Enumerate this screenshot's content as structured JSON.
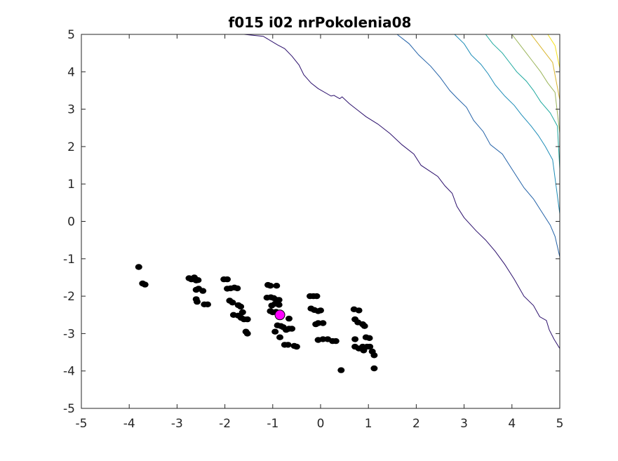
{
  "chart_data": {
    "type": "scatter",
    "title": "f015 i02 nrPokolenia08",
    "xlabel": "",
    "ylabel": "",
    "xlim": [
      -5,
      5
    ],
    "ylim": [
      -5,
      5
    ],
    "x_ticks": [
      "-5",
      "-4",
      "-3",
      "-2",
      "-1",
      "0",
      "1",
      "2",
      "3",
      "4",
      "5"
    ],
    "y_ticks": [
      "5",
      "4",
      "3",
      "2",
      "1",
      "0",
      "-1",
      "-2",
      "-3",
      "-4",
      "-5"
    ],
    "grid": false,
    "legend": "none",
    "point_color": "#000000",
    "best_color": "#ff00ff",
    "points": [
      [
        -3.8,
        -1.22
      ],
      [
        -3.72,
        -1.66
      ],
      [
        -3.67,
        -1.69
      ],
      [
        -2.75,
        -1.52
      ],
      [
        -2.7,
        -1.55
      ],
      [
        -2.64,
        -1.5
      ],
      [
        -2.6,
        -1.58
      ],
      [
        -2.56,
        -1.57
      ],
      [
        -2.6,
        -1.83
      ],
      [
        -2.55,
        -1.8
      ],
      [
        -2.46,
        -1.86
      ],
      [
        -2.6,
        -2.08
      ],
      [
        -2.58,
        -2.15
      ],
      [
        -2.43,
        -2.22
      ],
      [
        -2.36,
        -2.22
      ],
      [
        -2.02,
        -1.55
      ],
      [
        -1.95,
        -1.55
      ],
      [
        -1.95,
        -1.8
      ],
      [
        -1.88,
        -1.79
      ],
      [
        -1.8,
        -1.77
      ],
      [
        -1.74,
        -1.79
      ],
      [
        -1.9,
        -2.12
      ],
      [
        -1.84,
        -2.17
      ],
      [
        -1.72,
        -2.24
      ],
      [
        -1.67,
        -2.28
      ],
      [
        -1.63,
        -2.43
      ],
      [
        -1.82,
        -2.5
      ],
      [
        -1.72,
        -2.52
      ],
      [
        -1.66,
        -2.58
      ],
      [
        -1.6,
        -2.62
      ],
      [
        -1.53,
        -2.62
      ],
      [
        -1.56,
        -2.95
      ],
      [
        -1.53,
        -3.0
      ],
      [
        -1.1,
        -1.7
      ],
      [
        -1.05,
        -1.72
      ],
      [
        -0.92,
        -1.72
      ],
      [
        -1.12,
        -2.04
      ],
      [
        -1.04,
        -2.03
      ],
      [
        -0.98,
        -2.05
      ],
      [
        -0.92,
        -2.1
      ],
      [
        -0.87,
        -2.1
      ],
      [
        -1.02,
        -2.25
      ],
      [
        -0.95,
        -2.2
      ],
      [
        -0.87,
        -2.23
      ],
      [
        -1.05,
        -2.4
      ],
      [
        -1.0,
        -2.43
      ],
      [
        -0.93,
        -2.42
      ],
      [
        -0.9,
        -2.78
      ],
      [
        -0.83,
        -2.8
      ],
      [
        -0.78,
        -2.83
      ],
      [
        -0.72,
        -2.9
      ],
      [
        -0.66,
        -2.87
      ],
      [
        -0.6,
        -2.87
      ],
      [
        -0.66,
        -2.6
      ],
      [
        -0.85,
        -3.1
      ],
      [
        -0.75,
        -3.3
      ],
      [
        -0.68,
        -3.3
      ],
      [
        -0.55,
        -3.33
      ],
      [
        -0.5,
        -3.35
      ],
      [
        -0.95,
        -2.95
      ],
      [
        -0.22,
        -2.0
      ],
      [
        -0.15,
        -2.0
      ],
      [
        -0.08,
        -2.0
      ],
      [
        -0.2,
        -2.33
      ],
      [
        -0.13,
        -2.37
      ],
      [
        -0.05,
        -2.4
      ],
      [
        0.0,
        -2.38
      ],
      [
        -0.1,
        -2.75
      ],
      [
        -0.05,
        -2.72
      ],
      [
        0.05,
        -2.72
      ],
      [
        -0.05,
        -3.17
      ],
      [
        0.05,
        -3.15
      ],
      [
        0.15,
        -3.15
      ],
      [
        0.25,
        -3.2
      ],
      [
        0.32,
        -3.2
      ],
      [
        0.43,
        -3.98
      ],
      [
        0.7,
        -2.35
      ],
      [
        0.8,
        -2.38
      ],
      [
        0.72,
        -2.62
      ],
      [
        0.78,
        -2.7
      ],
      [
        0.88,
        -2.75
      ],
      [
        0.92,
        -2.8
      ],
      [
        0.72,
        -3.15
      ],
      [
        0.72,
        -3.35
      ],
      [
        0.8,
        -3.4
      ],
      [
        0.88,
        -3.35
      ],
      [
        0.9,
        -3.45
      ],
      [
        0.95,
        -3.1
      ],
      [
        1.02,
        -3.12
      ],
      [
        0.97,
        -3.35
      ],
      [
        1.03,
        -3.35
      ],
      [
        1.08,
        -3.48
      ],
      [
        1.12,
        -3.58
      ],
      [
        1.12,
        -3.93
      ]
    ],
    "best_point": [
      -0.85,
      -2.5
    ],
    "contour_lines": [
      {
        "color": "#2a0e6b",
        "points": [
          [
            -1.6,
            5.0
          ],
          [
            -1.2,
            4.95
          ],
          [
            -0.9,
            4.72
          ],
          [
            -0.75,
            4.62
          ],
          [
            -0.6,
            4.42
          ],
          [
            -0.45,
            4.18
          ],
          [
            -0.35,
            3.92
          ],
          [
            -0.2,
            3.7
          ],
          [
            -0.05,
            3.55
          ],
          [
            0.22,
            3.35
          ],
          [
            0.28,
            3.37
          ],
          [
            0.4,
            3.28
          ],
          [
            0.45,
            3.33
          ],
          [
            0.6,
            3.15
          ],
          [
            0.75,
            3.0
          ],
          [
            0.95,
            2.8
          ],
          [
            1.2,
            2.6
          ],
          [
            1.45,
            2.35
          ],
          [
            1.7,
            2.05
          ],
          [
            1.95,
            1.8
          ],
          [
            2.1,
            1.5
          ],
          [
            2.45,
            1.2
          ],
          [
            2.6,
            0.95
          ],
          [
            2.75,
            0.75
          ],
          [
            2.85,
            0.4
          ],
          [
            3.0,
            0.1
          ],
          [
            3.25,
            -0.25
          ],
          [
            3.45,
            -0.5
          ],
          [
            3.65,
            -0.8
          ],
          [
            3.85,
            -1.15
          ],
          [
            4.05,
            -1.55
          ],
          [
            4.25,
            -2.0
          ],
          [
            4.45,
            -2.25
          ],
          [
            4.58,
            -2.55
          ],
          [
            4.72,
            -2.65
          ],
          [
            4.78,
            -2.9
          ],
          [
            4.88,
            -3.15
          ],
          [
            5.0,
            -3.4
          ]
        ]
      },
      {
        "color": "#2261a7",
        "points": [
          [
            1.6,
            5.0
          ],
          [
            1.85,
            4.75
          ],
          [
            2.05,
            4.45
          ],
          [
            2.3,
            4.15
          ],
          [
            2.5,
            3.85
          ],
          [
            2.7,
            3.5
          ],
          [
            2.85,
            3.3
          ],
          [
            3.05,
            3.05
          ],
          [
            3.2,
            2.7
          ],
          [
            3.4,
            2.4
          ],
          [
            3.55,
            2.05
          ],
          [
            3.8,
            1.8
          ],
          [
            3.95,
            1.5
          ],
          [
            4.1,
            1.2
          ],
          [
            4.25,
            0.9
          ],
          [
            4.45,
            0.6
          ],
          [
            4.6,
            0.3
          ],
          [
            4.8,
            -0.1
          ],
          [
            4.9,
            -0.4
          ],
          [
            5.0,
            -0.95
          ]
        ]
      },
      {
        "color": "#1c8cb7",
        "points": [
          [
            2.8,
            5.0
          ],
          [
            3.0,
            4.75
          ],
          [
            3.15,
            4.45
          ],
          [
            3.35,
            4.2
          ],
          [
            3.5,
            3.95
          ],
          [
            3.65,
            3.65
          ],
          [
            3.85,
            3.35
          ],
          [
            4.05,
            3.1
          ],
          [
            4.2,
            2.85
          ],
          [
            4.4,
            2.55
          ],
          [
            4.55,
            2.3
          ],
          [
            4.7,
            2.0
          ],
          [
            4.85,
            1.65
          ],
          [
            5.0,
            0.2
          ]
        ]
      },
      {
        "color": "#1ca89e",
        "points": [
          [
            3.45,
            5.0
          ],
          [
            3.6,
            4.75
          ],
          [
            3.8,
            4.5
          ],
          [
            3.95,
            4.25
          ],
          [
            4.1,
            4.0
          ],
          [
            4.3,
            3.75
          ],
          [
            4.45,
            3.5
          ],
          [
            4.6,
            3.2
          ],
          [
            4.8,
            2.9
          ],
          [
            4.95,
            2.55
          ],
          [
            5.0,
            1.4
          ]
        ]
      },
      {
        "color": "#9bb55a",
        "points": [
          [
            4.0,
            5.0
          ],
          [
            4.15,
            4.75
          ],
          [
            4.3,
            4.5
          ],
          [
            4.45,
            4.25
          ],
          [
            4.6,
            4.0
          ],
          [
            4.75,
            3.7
          ],
          [
            4.9,
            3.45
          ],
          [
            5.0,
            2.35
          ]
        ]
      },
      {
        "color": "#d9b52c",
        "points": [
          [
            4.4,
            5.0
          ],
          [
            4.55,
            4.75
          ],
          [
            4.7,
            4.5
          ],
          [
            4.85,
            4.25
          ],
          [
            5.0,
            3.25
          ]
        ]
      },
      {
        "color": "#f7e21a",
        "points": [
          [
            4.75,
            5.0
          ],
          [
            4.9,
            4.7
          ],
          [
            5.0,
            4.1
          ]
        ]
      }
    ]
  }
}
